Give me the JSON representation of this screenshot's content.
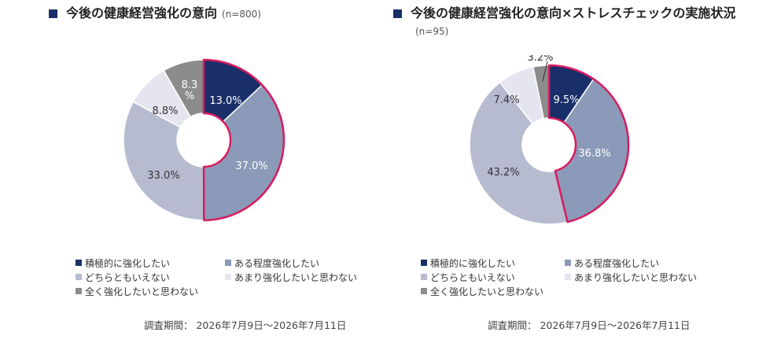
{
  "charts": [
    {
      "title": "今後の健康経営強化の意向",
      "sample": "(n=800)",
      "survey_note": "調査期間： 2026年7月9日～2026年7月11日",
      "highlight_color": "#d81b60"
    },
    {
      "title": "今後の健康経営強化の意向×ストレスチェックの実施状況",
      "sample": "(n=95)",
      "survey_note": "調査期間： 2026年7月9日～2026年7月11日",
      "highlight_color": "#d81b60"
    }
  ],
  "legend": [
    {
      "label": "積極的に強化したい",
      "color": "#1a2f6a"
    },
    {
      "label": "ある程度強化したい",
      "color": "#8b9ab8"
    },
    {
      "label": "どちらともいえない",
      "color": "#b6bbd0"
    },
    {
      "label": "あまり強化したいと思わない",
      "color": "#e4e5ee"
    },
    {
      "label": "全く強化したいと思わない",
      "color": "#8c8c8c"
    }
  ],
  "chart_data": [
    {
      "type": "pie",
      "title": "今後の健康経営強化の意向",
      "categories": [
        "積極的に強化したい",
        "ある程度強化したい",
        "どちらともいえない",
        "あまり強化したいと思わない",
        "全く強化したいと思わない"
      ],
      "values": [
        13.0,
        37.0,
        33.0,
        8.8,
        8.3
      ],
      "labels": [
        "13.0%",
        "37.0%",
        "33.0%",
        "8.8%",
        "8.3\n%"
      ],
      "colors": [
        "#1a2f6a",
        "#8b9ab8",
        "#b6bbd0",
        "#e4e5ee",
        "#8c8c8c"
      ],
      "highlighted": [
        0,
        1
      ],
      "donut": true
    },
    {
      "type": "pie",
      "title": "今後の健康経営強化の意向×ストレスチェックの実施状況",
      "categories": [
        "積極的に強化したい",
        "ある程度強化したい",
        "どちらともいえない",
        "あまり強化したいと思わない",
        "全く強化したいと思わない"
      ],
      "values": [
        9.5,
        36.8,
        43.2,
        7.4,
        3.2
      ],
      "labels": [
        "9.5%",
        "36.8%",
        "43.2%",
        "7.4%",
        "3.2%"
      ],
      "colors": [
        "#1a2f6a",
        "#8b9ab8",
        "#b6bbd0",
        "#e4e5ee",
        "#8c8c8c"
      ],
      "highlighted": [
        0,
        1
      ],
      "donut": true
    }
  ]
}
